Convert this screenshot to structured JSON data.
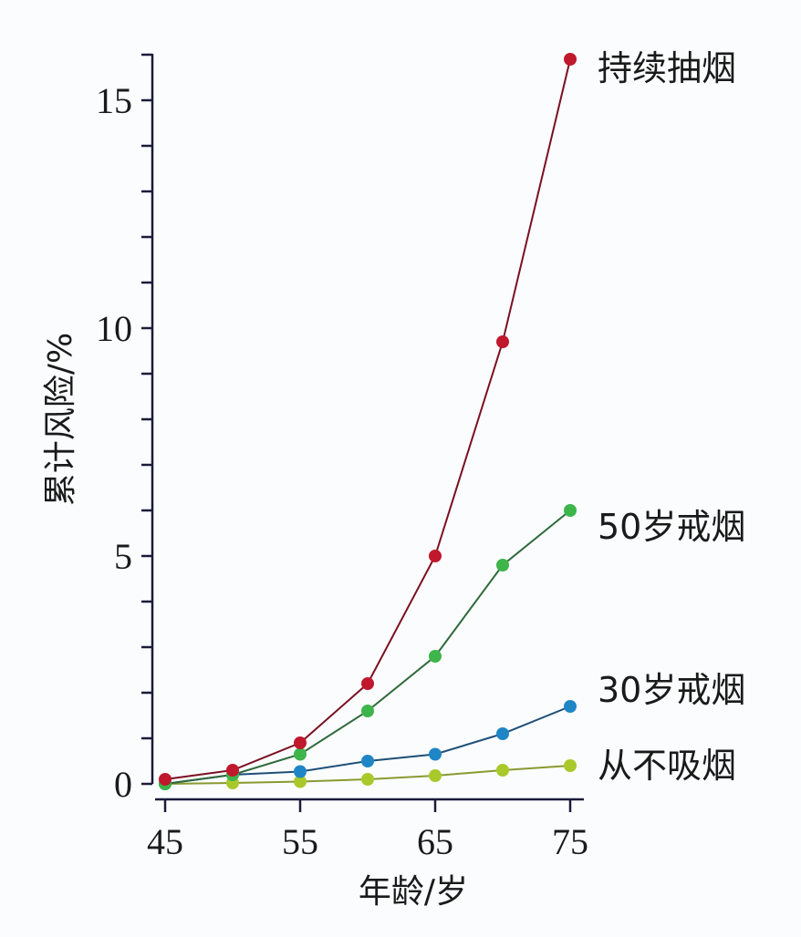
{
  "chart_data": {
    "type": "line",
    "title": "",
    "xlabel": "年龄/岁",
    "ylabel": "累计风险/%",
    "x": [
      45,
      50,
      55,
      60,
      65,
      70,
      75
    ],
    "xticks": [
      45,
      55,
      65,
      75
    ],
    "xtick_labels": [
      "45",
      "55",
      "65",
      "75"
    ],
    "yticks": [
      0,
      5,
      10,
      15
    ],
    "ytick_labels": [
      "0",
      "5",
      "10",
      "15"
    ],
    "y_minor_step": 1,
    "xlim": [
      45,
      75
    ],
    "ylim": [
      0,
      16
    ],
    "grid": false,
    "legend_position": "direct labels at line ends (right)",
    "series": [
      {
        "name": "持续抽烟",
        "color": "#c0182c",
        "values": [
          0.1,
          0.3,
          0.9,
          2.2,
          5.0,
          9.7,
          15.9
        ]
      },
      {
        "name": "50岁戒烟",
        "color": "#3db54a",
        "values": [
          0.0,
          0.2,
          0.65,
          1.6,
          2.8,
          4.8,
          6.0
        ]
      },
      {
        "name": "30岁戒烟",
        "color": "#1f86c6",
        "values": [
          0.0,
          0.2,
          0.27,
          0.5,
          0.65,
          1.1,
          1.7
        ]
      },
      {
        "name": "从不吸烟",
        "color": "#a9c92a",
        "values": [
          0.0,
          0.02,
          0.05,
          0.1,
          0.18,
          0.3,
          0.4
        ]
      }
    ],
    "line_colors": {
      "持续抽烟": "#7a1020",
      "50岁戒烟": "#2f6a3a",
      "30岁戒烟": "#1e4f78",
      "从不吸烟": "#8a9a30"
    },
    "axis_color": "#1b1b3a"
  },
  "labels": {
    "y_axis_title": "累计风险/%",
    "x_axis_title": "年龄/岁",
    "series": [
      "持续抽烟",
      "50岁戒烟",
      "30岁戒烟",
      "从不吸烟"
    ]
  }
}
